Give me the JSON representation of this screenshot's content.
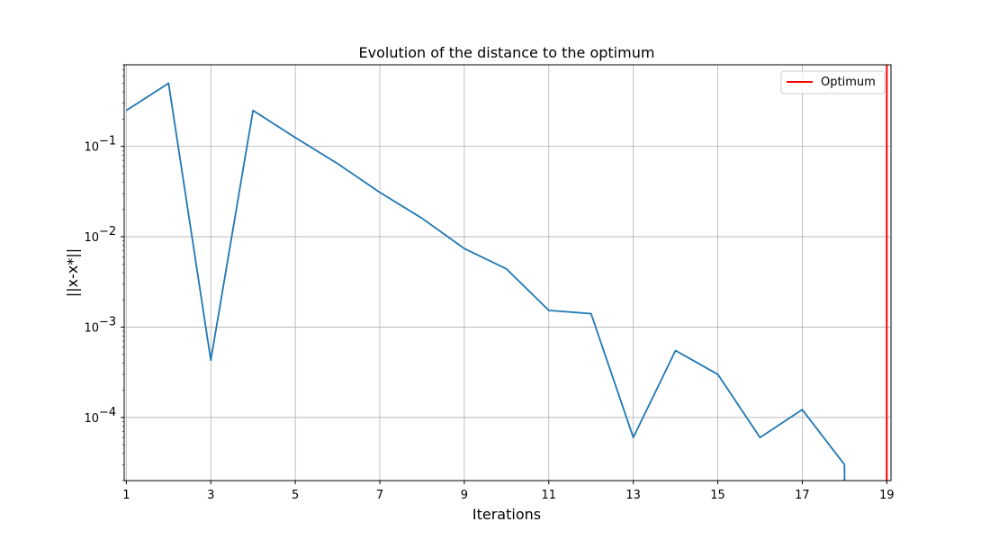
{
  "chart_data": {
    "type": "line",
    "title": "Evolution of the distance to the optimum",
    "xlabel": "Iterations",
    "ylabel": "||x-x*||",
    "yscale": "log",
    "xlim": [
      0.95,
      19.1
    ],
    "ylim": [
      2e-05,
      0.8
    ],
    "grid": true,
    "legend_placement": "top-right",
    "x_ticks": [
      1,
      3,
      5,
      7,
      9,
      11,
      13,
      15,
      17,
      19
    ],
    "y_ticks": [
      {
        "value": 0.1,
        "base": "10",
        "exp": "−1"
      },
      {
        "value": 0.01,
        "base": "10",
        "exp": "−2"
      },
      {
        "value": 0.001,
        "base": "10",
        "exp": "−3"
      },
      {
        "value": 0.0001,
        "base": "10",
        "exp": "−4"
      }
    ],
    "series": [
      {
        "color": "#1f77b4",
        "x": [
          1,
          2,
          3,
          4,
          5,
          6,
          7,
          8,
          9,
          10,
          11,
          12,
          13,
          14,
          15,
          16,
          17,
          18,
          18
        ],
        "y": [
          0.25,
          0.5,
          0.00043,
          0.25,
          0.125,
          0.0645,
          0.031,
          0.016,
          0.0074,
          0.0044,
          0.00153,
          0.00141,
          6e-05,
          0.00055,
          0.0003,
          6e-05,
          0.000122,
          3e-05,
          1e-05
        ]
      }
    ],
    "reference_lines": [
      {
        "name": "Optimum",
        "orientation": "vertical",
        "x": 19,
        "color": "#ff0000"
      }
    ]
  }
}
